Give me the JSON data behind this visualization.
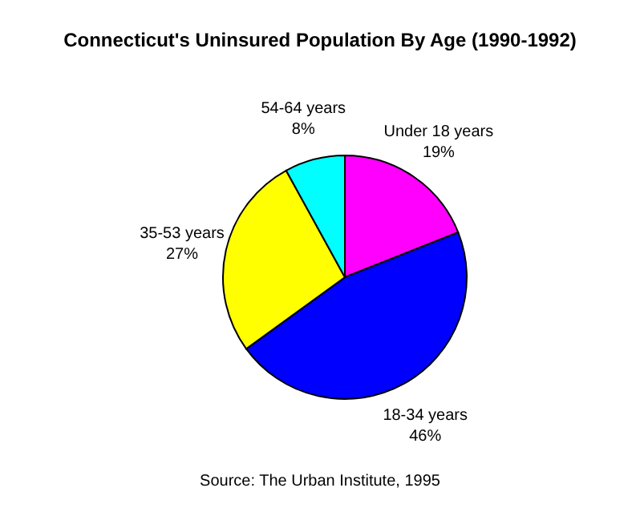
{
  "chart_data": {
    "type": "pie",
    "title": "Connecticut's Uninsured Population By Age (1990-1992)",
    "categories": [
      "Under 18 years",
      "18-34 years",
      "35-53 years",
      "54-64 years"
    ],
    "values": [
      19,
      46,
      27,
      8
    ],
    "value_labels": [
      "19%",
      "46%",
      "27%",
      "8%"
    ],
    "colors": [
      "#ff00ff",
      "#0000ff",
      "#ffff00",
      "#00ffff"
    ],
    "annotations": [
      "Source: The Urban Institute, 1995"
    ]
  }
}
